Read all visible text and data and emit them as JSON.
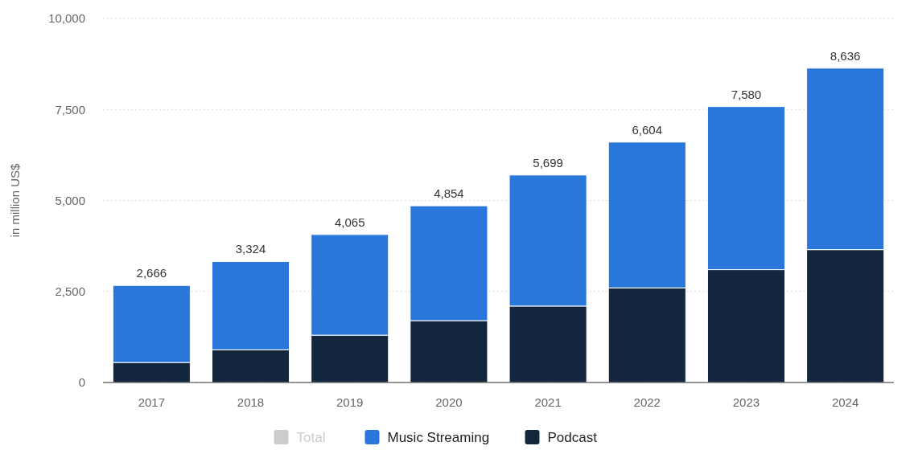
{
  "chart_data": {
    "type": "bar",
    "stacked": true,
    "ylabel": "in million US$",
    "categories": [
      "2017",
      "2018",
      "2019",
      "2020",
      "2021",
      "2022",
      "2023",
      "2024"
    ],
    "series": [
      {
        "name": "Podcast",
        "color": "#12263d",
        "values": [
          550,
          900,
          1300,
          1700,
          2100,
          2600,
          3100,
          3650
        ]
      },
      {
        "name": "Music Streaming",
        "color": "#2a77db",
        "values": [
          2116,
          2424,
          2765,
          3154,
          3599,
          4004,
          4480,
          4986
        ]
      },
      {
        "name": "Total",
        "color": "#cccccc",
        "values": [
          null,
          null,
          null,
          null,
          null,
          null,
          null,
          null
        ]
      }
    ],
    "totals": [
      "2,666",
      "3,324",
      "4,065",
      "4,854",
      "5,699",
      "6,604",
      "7,580",
      "8,636"
    ],
    "ylim": [
      0,
      10000
    ],
    "yticks": [
      {
        "value": 0,
        "label": "0"
      },
      {
        "value": 2500,
        "label": "2,500"
      },
      {
        "value": 5000,
        "label": "5,000"
      },
      {
        "value": 7500,
        "label": "7,500"
      },
      {
        "value": 10000,
        "label": "10,000"
      }
    ],
    "grid": "y",
    "legend": "bottom"
  }
}
